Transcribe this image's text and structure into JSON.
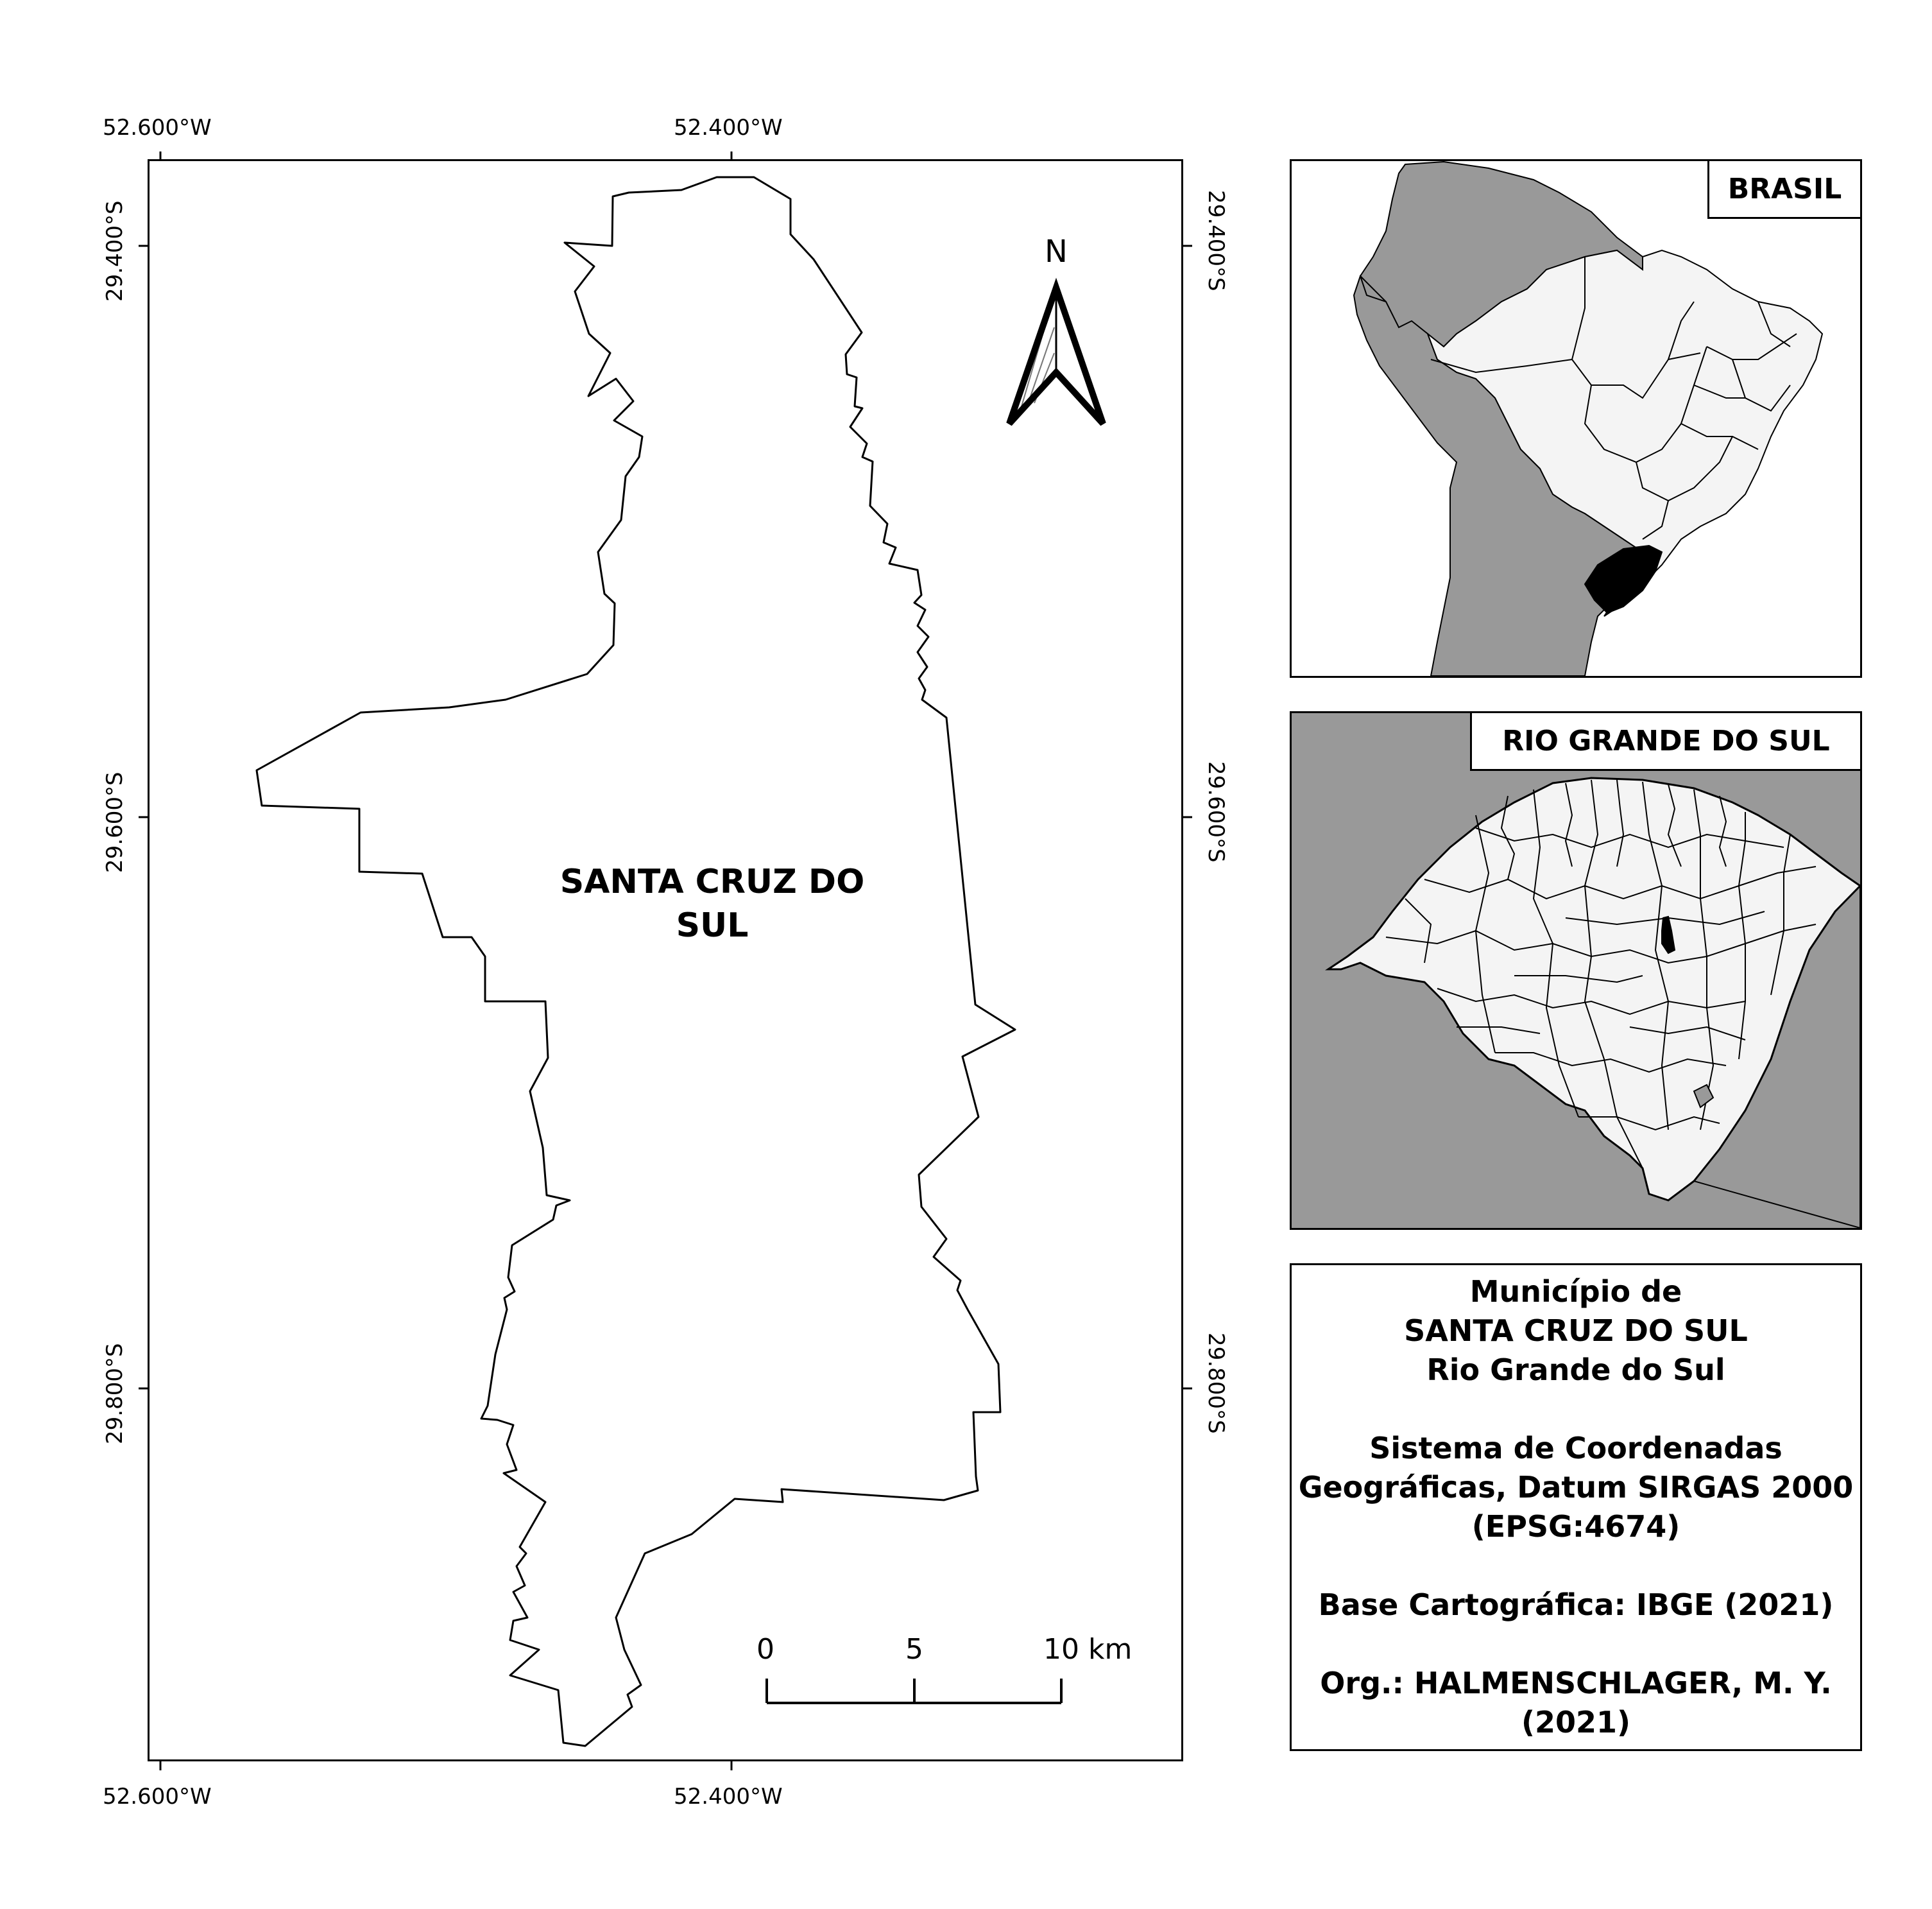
{
  "main_map": {
    "municipality_label_line1": "SANTA CRUZ DO",
    "municipality_label_line2": "SUL",
    "top_lon_labels": [
      "52.600°W",
      "52.400°W"
    ],
    "bottom_lon_labels": [
      "52.600°W",
      "52.400°W"
    ],
    "left_lat_labels": [
      "29.400°S",
      "29.600°S",
      "29.800°S"
    ],
    "right_lat_labels": [
      "29.400°S",
      "29.600°S",
      "29.800°S"
    ],
    "north_arrow_label": "N",
    "scale_bar": {
      "ticks": [
        "0",
        "5",
        "10 km"
      ],
      "length_km": 10
    }
  },
  "inset_brasil": {
    "title": "BRASIL"
  },
  "inset_rs": {
    "title": "RIO GRANDE DO SUL"
  },
  "info": {
    "lines": [
      "Município de",
      "SANTA CRUZ DO SUL",
      "Rio Grande do Sul",
      "",
      "Sistema de Coordenadas",
      "Geográficas, Datum SIRGAS 2000",
      "(EPSG:4674)",
      "",
      "Base Cartográfica: IBGE (2021)",
      "",
      "Org.: HALMENSCHLAGER, M. Y.",
      "(2021)"
    ]
  },
  "colors": {
    "neighbor_fill": "#999999",
    "region_fill": "#f4f4f4",
    "highlight_fill": "#000000",
    "line": "#000000"
  }
}
